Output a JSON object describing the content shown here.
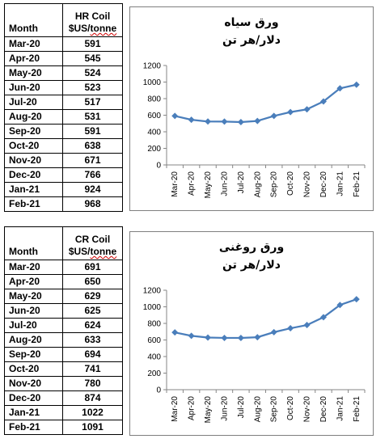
{
  "tables": [
    {
      "header_month": "Month",
      "header_value_line1": "HR Coil",
      "header_value_line2_prefix": "$US/",
      "header_value_line2_underlined": "tonne",
      "rows": [
        {
          "month": "Mar-20",
          "value": "591"
        },
        {
          "month": "Apr-20",
          "value": "545"
        },
        {
          "month": "May-20",
          "value": "524"
        },
        {
          "month": "Jun-20",
          "value": "523"
        },
        {
          "month": "Jul-20",
          "value": "517"
        },
        {
          "month": "Aug-20",
          "value": "531"
        },
        {
          "month": "Sep-20",
          "value": "591"
        },
        {
          "month": "Oct-20",
          "value": "638"
        },
        {
          "month": "Nov-20",
          "value": "671"
        },
        {
          "month": "Dec-20",
          "value": "766"
        },
        {
          "month": "Jan-21",
          "value": "924"
        },
        {
          "month": "Feb-21",
          "value": "968"
        }
      ]
    },
    {
      "header_month": "Month",
      "header_value_line1": "CR Coil",
      "header_value_line2_prefix": "$US/",
      "header_value_line2_underlined": "tonne",
      "rows": [
        {
          "month": "Mar-20",
          "value": "691"
        },
        {
          "month": "Apr-20",
          "value": "650"
        },
        {
          "month": "May-20",
          "value": "629"
        },
        {
          "month": "Jun-20",
          "value": "625"
        },
        {
          "month": "Jul-20",
          "value": "624"
        },
        {
          "month": "Aug-20",
          "value": "633"
        },
        {
          "month": "Sep-20",
          "value": "694"
        },
        {
          "month": "Oct-20",
          "value": "741"
        },
        {
          "month": "Nov-20",
          "value": "780"
        },
        {
          "month": "Dec-20",
          "value": "874"
        },
        {
          "month": "Jan-21",
          "value": "1022"
        },
        {
          "month": "Feb-21",
          "value": "1091"
        }
      ]
    }
  ],
  "chart_data": [
    {
      "type": "line",
      "title_line1": "ورق سیاه",
      "title_line2": "دلار/هر تن",
      "categories": [
        "Mar-20",
        "Apr-20",
        "May-20",
        "Jun-20",
        "Jul-20",
        "Aug-20",
        "Sep-20",
        "Oct-20",
        "Nov-20",
        "Dec-20",
        "Jan-21",
        "Feb-21"
      ],
      "series": [
        {
          "values": [
            591,
            545,
            524,
            523,
            517,
            531,
            591,
            638,
            671,
            766,
            924,
            968
          ]
        }
      ],
      "ylim": [
        0,
        1200
      ],
      "yticks": [
        0,
        200,
        400,
        600,
        800,
        1000,
        1200
      ],
      "grid": false,
      "legend": "none",
      "line_color": "#4a7ebb"
    },
    {
      "type": "line",
      "title_line1": "ورق روغنی",
      "title_line2": "دلار/هر تن",
      "categories": [
        "Mar-20",
        "Apr-20",
        "May-20",
        "Jun-20",
        "Jul-20",
        "Aug-20",
        "Sep-20",
        "Oct-20",
        "Nov-20",
        "Dec-20",
        "Jan-21",
        "Feb-21"
      ],
      "series": [
        {
          "values": [
            691,
            650,
            629,
            625,
            624,
            633,
            694,
            741,
            780,
            874,
            1022,
            1091
          ]
        }
      ],
      "ylim": [
        0,
        1200
      ],
      "yticks": [
        0,
        200,
        400,
        600,
        800,
        1000,
        1200
      ],
      "grid": false,
      "legend": "none",
      "line_color": "#4a7ebb"
    }
  ]
}
